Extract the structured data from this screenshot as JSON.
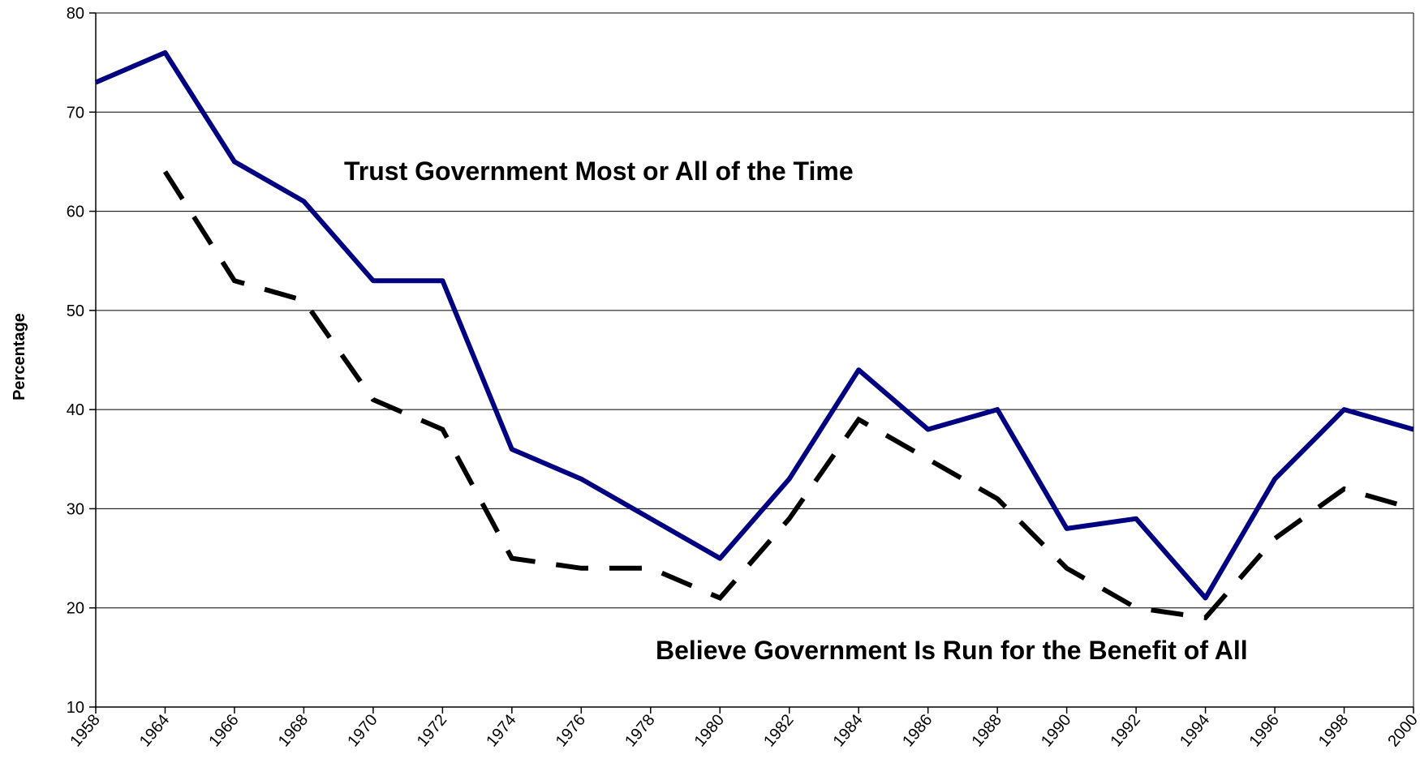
{
  "chart_data": {
    "type": "line",
    "title": "",
    "xlabel": "",
    "ylabel": "Percentage",
    "ylim": [
      10,
      80
    ],
    "yticks": [
      10,
      20,
      30,
      40,
      50,
      60,
      70,
      80
    ],
    "grid": "horizontal",
    "legend": "none",
    "categories": [
      "1958",
      "1964",
      "1966",
      "1968",
      "1970",
      "1972",
      "1974",
      "1976",
      "1978",
      "1980",
      "1982",
      "1984",
      "1986",
      "1988",
      "1990",
      "1992",
      "1994",
      "1996",
      "1998",
      "2000"
    ],
    "series": [
      {
        "name": "Trust Government Most or All of the Time",
        "style": "solid",
        "color": "#000080",
        "values": [
          73,
          76,
          65,
          61,
          53,
          53,
          36,
          33,
          29,
          25,
          33,
          44,
          38,
          40,
          28,
          29,
          21,
          33,
          40,
          38
        ]
      },
      {
        "name": "Believe Government Is Run for the Benefit of All",
        "style": "dashed",
        "color": "#000000",
        "values": [
          null,
          64,
          53,
          51,
          41,
          38,
          25,
          24,
          24,
          21,
          29,
          39,
          35,
          31,
          24,
          20,
          19,
          27,
          32,
          30
        ]
      }
    ],
    "annotations": [
      {
        "text": "Trust Government Most or All of the Time",
        "series": 0
      },
      {
        "text": "Believe Government Is Run for the Benefit of All",
        "series": 1
      }
    ]
  }
}
